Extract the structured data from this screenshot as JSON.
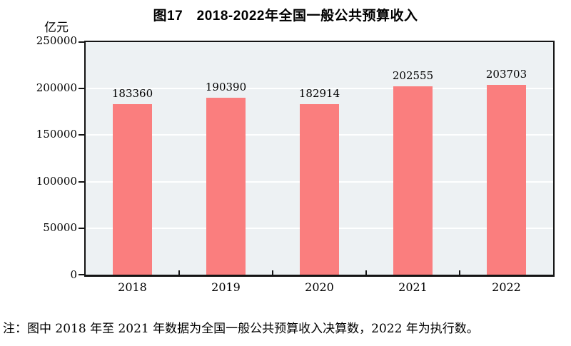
{
  "figure": {
    "title": "图17　2018-2022年全国一般公共预算收入",
    "unit_label": "亿元",
    "note": "注：图中 2018 年至 2021 年数据为全国一般公共预算收入决算数，2022 年为执行数。"
  },
  "colors": {
    "bar": "#fa7e7e",
    "plot_background": "#edf1f3",
    "gridline": "#ffffff",
    "axis": "#141414",
    "text": "#000000"
  },
  "chart_data": {
    "type": "bar",
    "title": "图17　2018-2022年全国一般公共预算收入",
    "categories": [
      "2018",
      "2019",
      "2020",
      "2021",
      "2022"
    ],
    "values": [
      183360,
      190390,
      182914,
      202555,
      203703
    ],
    "xlabel": "",
    "ylabel": "亿元",
    "ylim": [
      0,
      250000
    ],
    "yticks": [
      0,
      50000,
      100000,
      150000,
      200000,
      250000
    ],
    "grid": true,
    "legend": false,
    "data_labels": true,
    "bar_color": "#fa7e7e",
    "note": "注：图中 2018 年至 2021 年数据为全国一般公共预算收入决算数，2022 年为执行数。"
  }
}
